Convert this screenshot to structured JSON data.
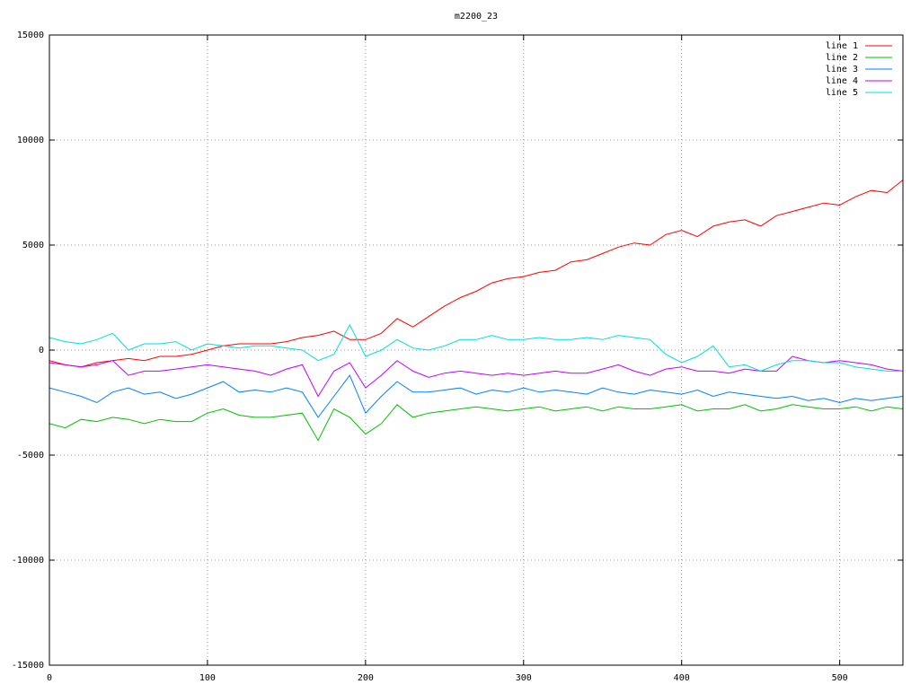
{
  "chart_data": {
    "type": "line",
    "title": "m2200_23",
    "x": [
      0,
      10,
      20,
      30,
      40,
      50,
      60,
      70,
      80,
      90,
      100,
      110,
      120,
      130,
      140,
      150,
      160,
      170,
      180,
      190,
      200,
      210,
      220,
      230,
      240,
      250,
      260,
      270,
      280,
      290,
      300,
      310,
      320,
      330,
      340,
      350,
      360,
      370,
      380,
      390,
      400,
      410,
      420,
      430,
      440,
      450,
      460,
      470,
      480,
      490,
      500,
      510,
      520,
      530,
      540
    ],
    "series": [
      {
        "name": "line 1",
        "color": "#ff0000",
        "values": [
          -500,
          -700,
          -800,
          -600,
          -500,
          -400,
          -500,
          -300,
          -300,
          -200,
          0,
          200,
          300,
          300,
          300,
          400,
          600,
          700,
          900,
          500,
          500,
          800,
          1500,
          1100,
          1600,
          2100,
          2500,
          2800,
          3200,
          3400,
          3500,
          3700,
          3800,
          4200,
          4300,
          4600,
          4900,
          5100,
          5000,
          5500,
          5700,
          5400,
          5900,
          6100,
          6200,
          5900,
          6400,
          6600,
          6800,
          7000,
          6900,
          7300,
          7600,
          7500,
          8100
        ]
      },
      {
        "name": "line 2",
        "color": "#00c000",
        "values": [
          -3500,
          -3700,
          -3300,
          -3400,
          -3200,
          -3300,
          -3500,
          -3300,
          -3400,
          -3400,
          -3000,
          -2800,
          -3100,
          -3200,
          -3200,
          -3100,
          -3000,
          -4300,
          -2800,
          -3200,
          -4000,
          -3500,
          -2600,
          -3200,
          -3000,
          -2900,
          -2800,
          -2700,
          -2800,
          -2900,
          -2800,
          -2700,
          -2900,
          -2800,
          -2700,
          -2900,
          -2700,
          -2800,
          -2800,
          -2700,
          -2600,
          -2900,
          -2800,
          -2800,
          -2600,
          -2900,
          -2800,
          -2600,
          -2700,
          -2800,
          -2800,
          -2700,
          -2900,
          -2700,
          -2800
        ]
      },
      {
        "name": "line 3",
        "color": "#0080ff",
        "values": [
          -1800,
          -2000,
          -2200,
          -2500,
          -2000,
          -1800,
          -2100,
          -2000,
          -2300,
          -2100,
          -1800,
          -1500,
          -2000,
          -1900,
          -2000,
          -1800,
          -2000,
          -3200,
          -2200,
          -1200,
          -3000,
          -2200,
          -1500,
          -2000,
          -2000,
          -1900,
          -1800,
          -2100,
          -1900,
          -2000,
          -1800,
          -2000,
          -1900,
          -2000,
          -2100,
          -1800,
          -2000,
          -2100,
          -1900,
          -2000,
          -2100,
          -1900,
          -2200,
          -2000,
          -2100,
          -2200,
          -2300,
          -2200,
          -2400,
          -2300,
          -2500,
          -2300,
          -2400,
          -2300,
          -2200
        ]
      },
      {
        "name": "line 4",
        "color": "#c000ff",
        "values": [
          -600,
          -700,
          -800,
          -700,
          -500,
          -1200,
          -1000,
          -1000,
          -900,
          -800,
          -700,
          -800,
          -900,
          -1000,
          -1200,
          -900,
          -700,
          -2200,
          -1000,
          -600,
          -1800,
          -1200,
          -500,
          -1000,
          -1300,
          -1100,
          -1000,
          -1100,
          -1200,
          -1100,
          -1200,
          -1100,
          -1000,
          -1100,
          -1100,
          -900,
          -700,
          -1000,
          -1200,
          -900,
          -800,
          -1000,
          -1000,
          -1100,
          -900,
          -1000,
          -1000,
          -300,
          -500,
          -600,
          -500,
          -600,
          -700,
          -900,
          -1000
        ]
      },
      {
        "name": "line 5",
        "color": "#00dddd",
        "values": [
          600,
          400,
          300,
          500,
          800,
          0,
          300,
          300,
          400,
          0,
          300,
          200,
          100,
          200,
          200,
          100,
          0,
          -500,
          -200,
          1200,
          -300,
          0,
          500,
          100,
          0,
          200,
          500,
          500,
          700,
          500,
          500,
          600,
          500,
          500,
          600,
          500,
          700,
          600,
          500,
          -200,
          -600,
          -300,
          200,
          -800,
          -700,
          -1000,
          -700,
          -500,
          -500,
          -600,
          -600,
          -800,
          -900,
          -1000,
          -1000
        ]
      }
    ],
    "xlim": [
      0,
      540
    ],
    "xticks": [
      0,
      100,
      200,
      300,
      400,
      500
    ],
    "ylim": [
      -15000,
      15000
    ],
    "yticks": [
      -15000,
      -10000,
      -5000,
      0,
      5000,
      10000,
      15000
    ],
    "grid": true,
    "legend": "top-right"
  }
}
